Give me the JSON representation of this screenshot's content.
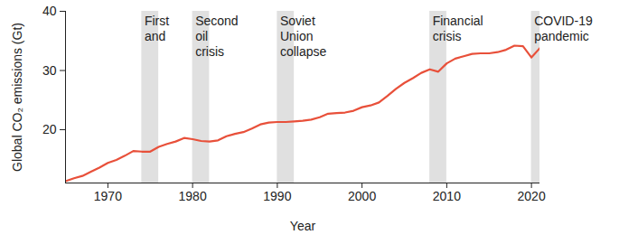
{
  "chart_data": {
    "type": "line",
    "x_label": "Year",
    "y_label": "Global CO₂ emissions (Gt)",
    "color": "#e8503a",
    "x": [
      1965,
      1966,
      1967,
      1968,
      1969,
      1970,
      1971,
      1972,
      1973,
      1974,
      1975,
      1976,
      1977,
      1978,
      1979,
      1980,
      1981,
      1982,
      1983,
      1984,
      1985,
      1986,
      1987,
      1988,
      1989,
      1990,
      1991,
      1992,
      1993,
      1994,
      1995,
      1996,
      1997,
      1998,
      1999,
      2000,
      2001,
      2002,
      2003,
      2004,
      2005,
      2006,
      2007,
      2008,
      2009,
      2010,
      2011,
      2012,
      2013,
      2014,
      2015,
      2016,
      2017,
      2018,
      2019,
      2020,
      2021
    ],
    "values": [
      11.3,
      11.8,
      12.2,
      12.9,
      13.6,
      14.4,
      14.9,
      15.6,
      16.4,
      16.3,
      16.3,
      17.1,
      17.6,
      18.0,
      18.6,
      18.4,
      18.1,
      18.0,
      18.2,
      18.9,
      19.3,
      19.6,
      20.2,
      20.9,
      21.2,
      21.3,
      21.3,
      21.4,
      21.5,
      21.7,
      22.1,
      22.7,
      22.8,
      22.9,
      23.2,
      23.8,
      24.1,
      24.6,
      25.7,
      26.9,
      27.9,
      28.7,
      29.6,
      30.2,
      29.8,
      31.2,
      32.0,
      32.4,
      32.8,
      32.9,
      32.9,
      33.1,
      33.5,
      34.2,
      34.1,
      32.2,
      33.8
    ],
    "xlim": [
      1965,
      2021
    ],
    "xticks": [
      1970,
      1980,
      1990,
      2000,
      2010,
      2020
    ],
    "ylim": [
      11,
      40
    ],
    "yticks": [
      20,
      30,
      40
    ],
    "grid": false,
    "shaded_periods": [
      {
        "start": 1974,
        "end": 1976,
        "label": "First\nand"
      },
      {
        "start": 1980,
        "end": 1982,
        "label": "Second\noil\ncrisis"
      },
      {
        "start": 1990,
        "end": 1992,
        "label": "Soviet\nUnion\ncollapse"
      },
      {
        "start": 2008,
        "end": 2010,
        "label": "Financial\ncrisis"
      },
      {
        "start": 2020,
        "end": 2021,
        "label": "COVID-19\npandemic"
      }
    ]
  }
}
